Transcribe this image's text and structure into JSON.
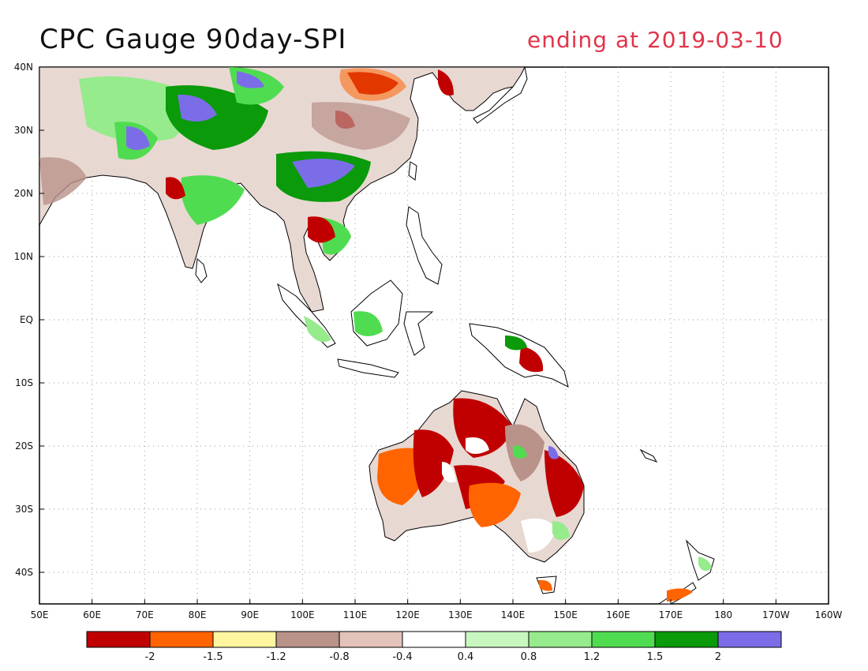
{
  "title": "CPC Gauge 90day-SPI",
  "subtitle": "ending at 2019-03-10",
  "lat_ticks": [
    "40N",
    "30N",
    "20N",
    "10N",
    "EQ",
    "10S",
    "20S",
    "30S",
    "40S"
  ],
  "lon_ticks": [
    "50E",
    "60E",
    "70E",
    "80E",
    "90E",
    "100E",
    "110E",
    "120E",
    "130E",
    "140E",
    "150E",
    "160E",
    "170E",
    "180",
    "170W",
    "160W"
  ],
  "colorbar": {
    "colors": [
      "#c00000",
      "#ff6400",
      "#fff5a0",
      "#b9928a",
      "#e3c3ba",
      "#ffffff",
      "#c8f8c0",
      "#96eb8c",
      "#50dc50",
      "#0a9a0a",
      "#7b6de8"
    ],
    "labels": [
      "-2",
      "-1.5",
      "-1.2",
      "-0.8",
      "-0.4",
      "0.4",
      "0.8",
      "1.2",
      "1.5",
      "2"
    ]
  }
}
